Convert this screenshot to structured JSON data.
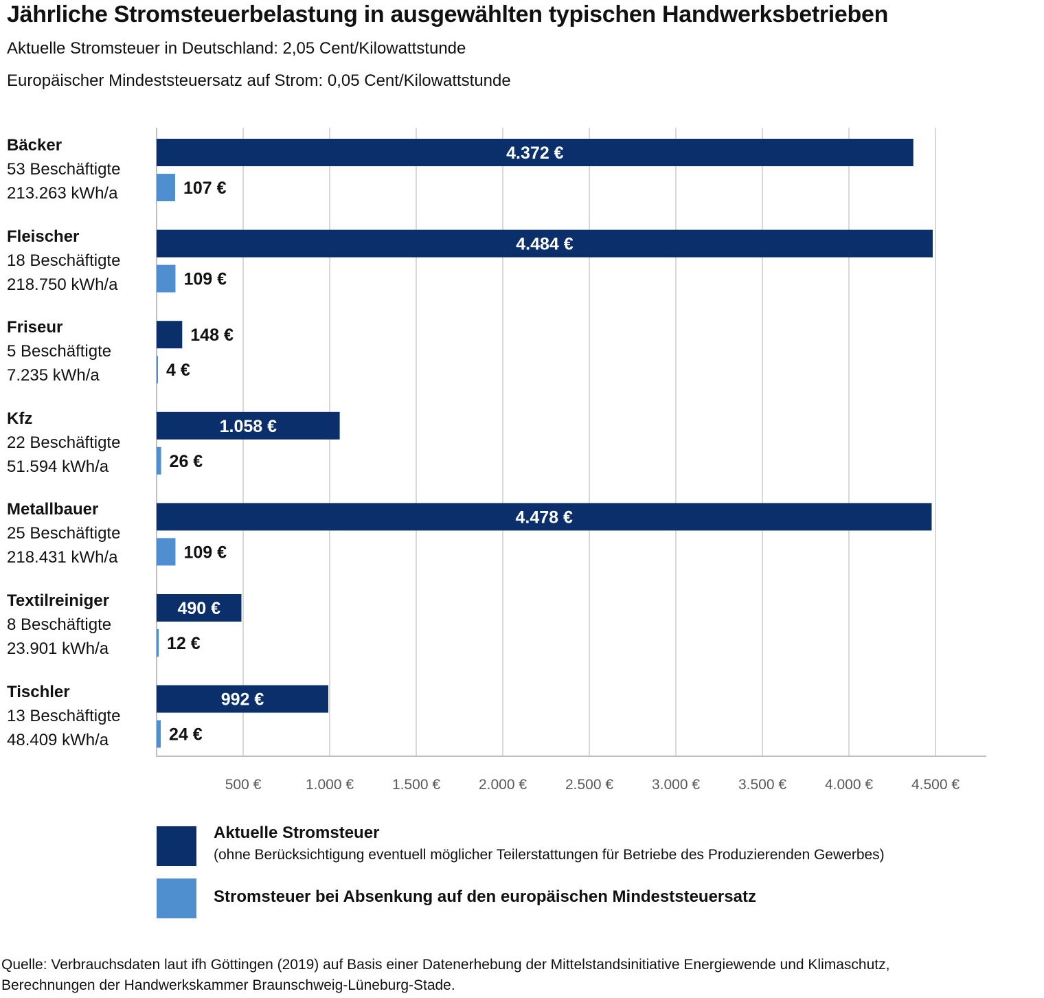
{
  "title": "Jährliche Stromsteuerbelastung in ausgewählten typischen Handwerksbetrieben",
  "subtitle_lines": [
    "Aktuelle Stromsteuer in Deutschland: 2,05 Cent/Kilowattstunde",
    "Europäischer Mindeststeuersatz auf Strom: 0,05 Cent/Kilowattstunde"
  ],
  "colors": {
    "current": "#0a2f6b",
    "reduced": "#4f8fcf",
    "grid": "#d9d9d9",
    "axis": "#bfbfbf",
    "tick_text": "#595959"
  },
  "chart_data": {
    "type": "bar",
    "orientation": "horizontal",
    "categories": [
      "Bäcker",
      "Fleischer",
      "Friseur",
      "Kfz",
      "Metallbauer",
      "Textilreiniger",
      "Tischler"
    ],
    "category_details": [
      [
        "53 Beschäftigte",
        "213.263 kWh/a"
      ],
      [
        "18 Beschäftigte",
        "218.750 kWh/a"
      ],
      [
        "5 Beschäftigte",
        "7.235 kWh/a"
      ],
      [
        "22 Beschäftigte",
        "51.594 kWh/a"
      ],
      [
        "25 Beschäftigte",
        "218.431 kWh/a"
      ],
      [
        "8 Beschäftigte",
        "23.901 kWh/a"
      ],
      [
        "13 Beschäftigte",
        "48.409 kWh/a"
      ]
    ],
    "series": [
      {
        "name": "Aktuelle Stromsteuer",
        "values": [
          4372,
          4484,
          148,
          1058,
          4478,
          490,
          992
        ],
        "labels": [
          "4.372 €",
          "4.484 €",
          "148 €",
          "1.058 €",
          "4.478 €",
          "490 €",
          "992 €"
        ]
      },
      {
        "name": "Stromsteuer bei Absenkung auf den europäischen Mindeststeuersatz",
        "values": [
          107,
          109,
          4,
          26,
          109,
          12,
          24
        ],
        "labels": [
          "107 €",
          "109 €",
          "4 €",
          "26 €",
          "109 €",
          "12 €",
          "24 €"
        ]
      }
    ],
    "xlim": [
      0,
      4800
    ],
    "xticks": [
      500,
      1000,
      1500,
      2000,
      2500,
      3000,
      3500,
      4000,
      4500
    ],
    "xtick_labels": [
      "500 €",
      "1.000 €",
      "1.500 €",
      "2.000 €",
      "2.500 €",
      "3.000 €",
      "3.500 €",
      "4.000 €",
      "4.500 €"
    ],
    "grid": true,
    "legend_position": "bottom"
  },
  "legend": {
    "current_label": "Aktuelle Stromsteuer",
    "current_note": "(ohne Berücksichtigung eventuell möglicher Teilerstattungen für Betriebe des Produzierenden Gewerbes)",
    "reduced_label": "Stromsteuer bei Absenkung auf den europäischen Mindeststeuersatz"
  },
  "source_lines": [
    "Quelle: Verbrauchsdaten laut ifh Göttingen (2019) auf Basis einer Datenerhebung der Mittelstandsinitiative Energiewende und Klimaschutz,",
    "Berechnungen der Handwerkskammer Braunschweig-Lüneburg-Stade."
  ]
}
